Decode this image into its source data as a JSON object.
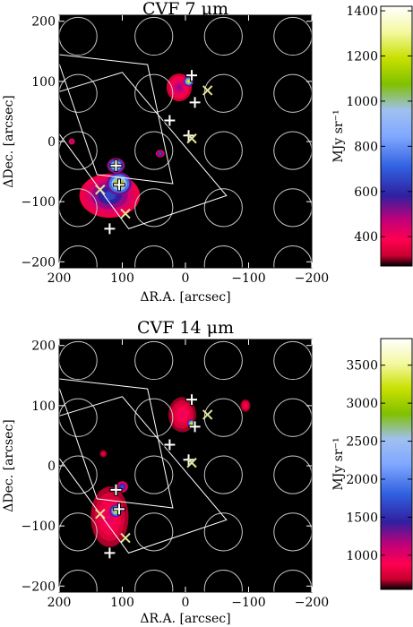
{
  "chart_data": [
    {
      "type": "heatmap",
      "title": "CVF 7 μm",
      "xlabel": "ΔR.A. [arcsec]",
      "ylabel": "ΔDec. [arcsec]",
      "xlim": [
        200,
        -200
      ],
      "ylim": [
        -210,
        210
      ],
      "x_ticks": [
        200,
        100,
        0,
        -100,
        -200
      ],
      "y_ticks": [
        200,
        100,
        0,
        -100,
        -200
      ],
      "x_tick_labels": [
        "200",
        "100",
        "0",
        "−100",
        "−200"
      ],
      "y_tick_labels": [
        "200",
        "100",
        "0",
        "−100",
        "−200"
      ],
      "colorbar": {
        "label": "MJy sr⁻¹",
        "range": [
          270,
          1420
        ],
        "ticks": [
          400,
          600,
          800,
          1000,
          1200,
          1400
        ],
        "tick_labels": [
          "400",
          "600",
          "800",
          "1000",
          "1200",
          "1400"
        ]
      },
      "background_color": "#000000",
      "circle_color": "#c8c8c8",
      "box_color": "#ffffff",
      "circle_radius": 30,
      "circle_centers_x": [
        170,
        50,
        -60,
        -170
      ],
      "circle_centers_y": [
        175,
        80,
        -15,
        -110,
        -205
      ],
      "fields": [
        [
          [
            240,
            70
          ],
          [
            90,
            -145
          ],
          [
            -65,
            -90
          ],
          [
            100,
            115
          ]
        ],
        [
          [
            205,
            145
          ],
          [
            60,
            128
          ],
          [
            20,
            -70
          ],
          [
            140,
            -55
          ]
        ]
      ],
      "blobs": [
        {
          "x": 120,
          "y": -90,
          "rx": 48,
          "ry": 35,
          "level": 650
        },
        {
          "x": 105,
          "y": -70,
          "rx": 20,
          "ry": 18,
          "level": 1350
        },
        {
          "x": 110,
          "y": -40,
          "rx": 14,
          "ry": 12,
          "level": 1200
        },
        {
          "x": 10,
          "y": 90,
          "rx": 20,
          "ry": 22,
          "level": 500
        },
        {
          "x": -5,
          "y": 100,
          "rx": 8,
          "ry": 8,
          "level": 1300
        },
        {
          "x": 40,
          "y": -20,
          "rx": 7,
          "ry": 6,
          "level": 700
        },
        {
          "x": 180,
          "y": 0,
          "rx": 5,
          "ry": 5,
          "level": 550
        }
      ],
      "plus_markers": [
        {
          "x": 110,
          "y": -40
        },
        {
          "x": 105,
          "y": -72
        },
        {
          "x": 120,
          "y": -145
        },
        {
          "x": 25,
          "y": 35
        },
        {
          "x": -5,
          "y": 10
        },
        {
          "x": -15,
          "y": 65
        },
        {
          "x": -10,
          "y": 110
        }
      ],
      "cross_markers": [
        {
          "x": 135,
          "y": -80
        },
        {
          "x": 95,
          "y": -120
        },
        {
          "x": -10,
          "y": 5
        },
        {
          "x": -35,
          "y": 85
        }
      ]
    },
    {
      "type": "heatmap",
      "title": "CVF 14 μm",
      "xlabel": "ΔR.A. [arcsec]",
      "ylabel": "ΔDec. [arcsec]",
      "xlim": [
        200,
        -200
      ],
      "ylim": [
        -210,
        210
      ],
      "x_ticks": [
        200,
        100,
        0,
        -100,
        -200
      ],
      "y_ticks": [
        200,
        100,
        0,
        -100,
        -200
      ],
      "x_tick_labels": [
        "200",
        "100",
        "0",
        "−100",
        "−200"
      ],
      "y_tick_labels": [
        "200",
        "100",
        "0",
        "−100",
        "−200"
      ],
      "colorbar": {
        "label": "MJy sr⁻¹",
        "range": [
          550,
          3850
        ],
        "ticks": [
          1000,
          1500,
          2000,
          2500,
          3000,
          3500
        ],
        "tick_labels": [
          "1000",
          "1500",
          "2000",
          "2500",
          "3000",
          "3500"
        ]
      },
      "background_color": "#000000",
      "circle_color": "#c8c8c8",
      "box_color": "#ffffff",
      "circle_radius": 30,
      "circle_centers_x": [
        170,
        50,
        -60,
        -170
      ],
      "circle_centers_y": [
        175,
        80,
        -15,
        -110,
        -205
      ],
      "fields": [
        [
          [
            240,
            70
          ],
          [
            90,
            -145
          ],
          [
            -65,
            -90
          ],
          [
            100,
            115
          ]
        ],
        [
          [
            205,
            145
          ],
          [
            60,
            128
          ],
          [
            20,
            -70
          ],
          [
            140,
            -55
          ]
        ]
      ],
      "blobs": [
        {
          "x": 120,
          "y": -85,
          "rx": 30,
          "ry": 48,
          "level": 1000
        },
        {
          "x": 110,
          "y": -75,
          "rx": 10,
          "ry": 10,
          "level": 3600
        },
        {
          "x": 100,
          "y": -35,
          "rx": 9,
          "ry": 9,
          "level": 1800
        },
        {
          "x": 5,
          "y": 85,
          "rx": 22,
          "ry": 28,
          "level": 950
        },
        {
          "x": -10,
          "y": 70,
          "rx": 7,
          "ry": 7,
          "level": 3500
        },
        {
          "x": -95,
          "y": 100,
          "rx": 8,
          "ry": 10,
          "level": 900
        },
        {
          "x": 130,
          "y": 20,
          "rx": 6,
          "ry": 6,
          "level": 800
        }
      ],
      "plus_markers": [
        {
          "x": 110,
          "y": -40
        },
        {
          "x": 105,
          "y": -72
        },
        {
          "x": 120,
          "y": -145
        },
        {
          "x": 25,
          "y": 35
        },
        {
          "x": -5,
          "y": 10
        },
        {
          "x": -15,
          "y": 65
        },
        {
          "x": -10,
          "y": 110
        }
      ],
      "cross_markers": [
        {
          "x": 135,
          "y": -80
        },
        {
          "x": 95,
          "y": -120
        },
        {
          "x": -10,
          "y": 5
        },
        {
          "x": -35,
          "y": 85
        }
      ]
    }
  ]
}
